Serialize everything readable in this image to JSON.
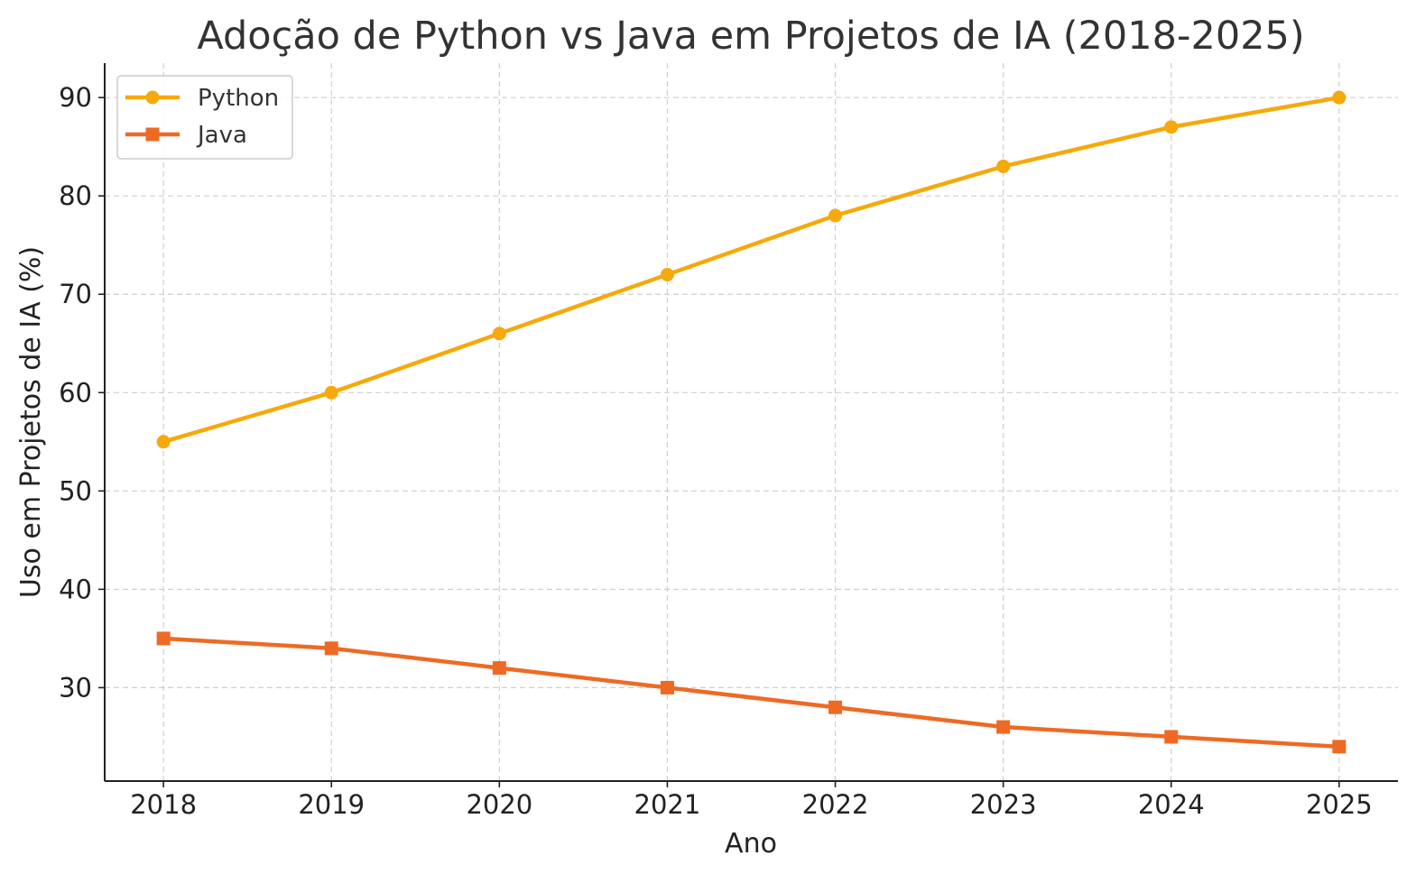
{
  "chart_data": {
    "type": "line",
    "title": "Adoção de Python vs Java em Projetos de IA (2018-2025)",
    "xlabel": "Ano",
    "ylabel": "Uso em Projetos de IA (%)",
    "x": [
      2018,
      2019,
      2020,
      2021,
      2022,
      2023,
      2024,
      2025
    ],
    "xticks": [
      "2018",
      "2019",
      "2020",
      "2021",
      "2022",
      "2023",
      "2024",
      "2025"
    ],
    "yticks": [
      30,
      40,
      50,
      60,
      70,
      80,
      90
    ],
    "ylim": [
      20.5,
      93.5
    ],
    "xlim": [
      2017.65,
      2025.35
    ],
    "grid": true,
    "legend_position": "top-left",
    "series": [
      {
        "name": "Python",
        "values": [
          55,
          60,
          66,
          72,
          78,
          83,
          87,
          90
        ],
        "color": "#F5A90A",
        "marker": "circle"
      },
      {
        "name": "Java",
        "values": [
          35,
          34,
          32,
          30,
          28,
          26,
          25,
          24
        ],
        "color": "#EE6A24",
        "marker": "square"
      }
    ]
  }
}
